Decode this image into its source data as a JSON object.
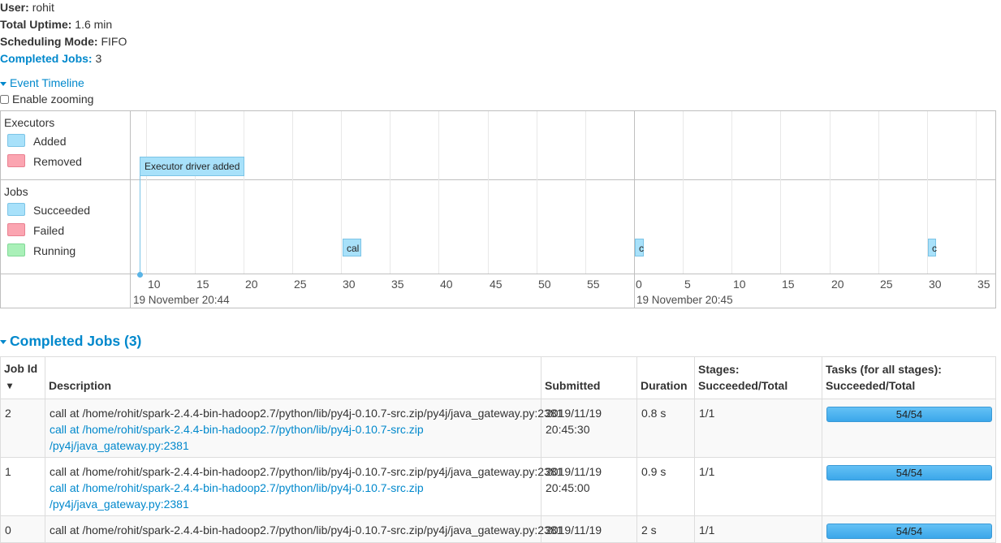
{
  "summary": {
    "user_label": "User:",
    "user_value": "rohit",
    "uptime_label": "Total Uptime:",
    "uptime_value": "1.6 min",
    "sched_label": "Scheduling Mode:",
    "sched_value": "FIFO",
    "completed_label": "Completed Jobs:",
    "completed_value": "3"
  },
  "event_timeline": {
    "header": "Event Timeline",
    "zoom_label": "Enable zooming",
    "executors_title": "Executors",
    "executors_legend": [
      "Added",
      "Removed"
    ],
    "jobs_title": "Jobs",
    "jobs_legend": [
      "Succeeded",
      "Failed",
      "Running"
    ],
    "executor_event": "Executor driver added",
    "job_events": [
      "cal",
      "c",
      "c"
    ],
    "ticks_min1": [
      "10",
      "15",
      "20",
      "25",
      "30",
      "35",
      "40",
      "45",
      "50",
      "55"
    ],
    "ticks_min2": [
      "0",
      "5",
      "10",
      "15",
      "20",
      "25",
      "30",
      "35"
    ],
    "date1": "19 November 20:44",
    "date2": "19 November 20:45"
  },
  "completed_jobs": {
    "header": "Completed Jobs (3)",
    "columns": {
      "job_id": "Job Id",
      "sort_arrow": "▾",
      "description": "Description",
      "submitted": "Submitted",
      "duration": "Duration",
      "stages_line1": "Stages:",
      "stages_line2": "Succeeded/Total",
      "tasks_line1": "Tasks (for all stages):",
      "tasks_line2": "Succeeded/Total"
    },
    "rows": [
      {
        "id": "2",
        "desc": "call at /home/rohit/spark-2.4.4-bin-hadoop2.7/python/lib/py4j-0.10.7-src.zip/py4j/java_gateway.py:2381",
        "link1": "call at /home/rohit/spark-2.4.4-bin-hadoop2.7/python/lib/py4j-0.10.7-src.zip",
        "link2": "/py4j/java_gateway.py:2381",
        "date": "2019/11/19",
        "time": "20:45:30",
        "duration": "0.8 s",
        "stages": "1/1",
        "tasks": "54/54"
      },
      {
        "id": "1",
        "desc": "call at /home/rohit/spark-2.4.4-bin-hadoop2.7/python/lib/py4j-0.10.7-src.zip/py4j/java_gateway.py:2381",
        "link1": "call at /home/rohit/spark-2.4.4-bin-hadoop2.7/python/lib/py4j-0.10.7-src.zip",
        "link2": "/py4j/java_gateway.py:2381",
        "date": "2019/11/19",
        "time": "20:45:00",
        "duration": "0.9 s",
        "stages": "1/1",
        "tasks": "54/54"
      },
      {
        "id": "0",
        "desc": "call at /home/rohit/spark-2.4.4-bin-hadoop2.7/python/lib/py4j-0.10.7-src.zip/py4j/java_gateway.py:2381",
        "link1": "",
        "link2": "",
        "date": "2019/11/19",
        "time": "",
        "duration": "2 s",
        "stages": "1/1",
        "tasks": "54/54"
      }
    ]
  }
}
